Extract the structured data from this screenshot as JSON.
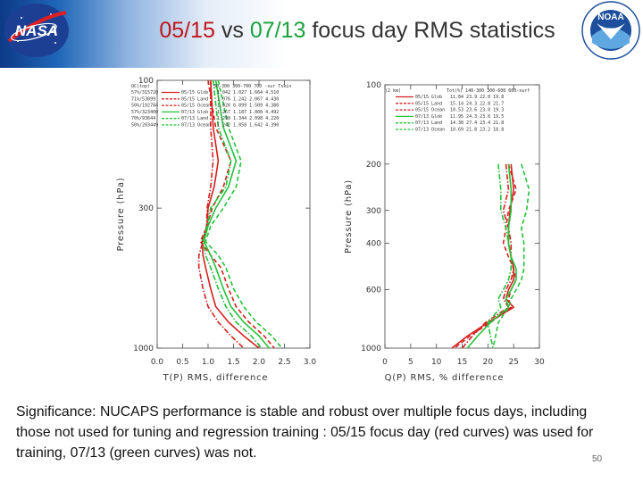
{
  "slide": {
    "title_prefix": "05/15",
    "title_vs": " vs ",
    "title_mid": "07/13",
    "title_suffix": " focus day RMS statistics",
    "nasa_logo_text": "NASA",
    "noaa_logo_text": "NOAA",
    "caption": "Significance: NUCAPS performance is stable and robust over multiple focus days, including those not used for tuning and regression training : 05/15 focus day (red curves) was used for training, 07/13 (green curves) was not.",
    "page_number": "50",
    "colors": {
      "red": "#d62020",
      "green": "#23c23a",
      "title_red": "#c0161b",
      "title_green": "#1aa23d"
    }
  },
  "chart_data": [
    {
      "type": "line",
      "xlabel": "T(P) RMS, difference",
      "ylabel": "Pressure (hPa)",
      "xlim": [
        0,
        3.0
      ],
      "ylim": [
        100,
        1000
      ],
      "y_scale": "log",
      "y_reversed": true,
      "xticks": [
        "0.0",
        "0.5",
        "1.0",
        "1.5",
        "2.0",
        "2.5",
        "3.0"
      ],
      "yticks": [
        "100",
        "300",
        "1000"
      ],
      "legend_position": "top-left",
      "legend_header": {
        "left": "QC(top)",
        "right": "30-300 300-700 700 -sur Tskin"
      },
      "legend_rows": [
        {
          "qc": "57%/315720",
          "label": "05/15 Glob",
          "vals": "1.042 1.027 1.664 4.510",
          "color": "red",
          "dash": "solid"
        },
        {
          "qc": "71%/53899",
          "label": "05/15 Land",
          "vals": "1.076 1.242 2.067 4.430",
          "color": "red",
          "dash": "dash"
        },
        {
          "qc": "50%/192784",
          "label": "05/15 Ocean",
          "vals": "1.026 0.899 1.509 4.380",
          "color": "red",
          "dash": "dashdot"
        },
        {
          "qc": "57%/323400",
          "label": "07/13 Glob",
          "vals": "1.267 1.187 1.808 4.492",
          "color": "green",
          "dash": "solid"
        },
        {
          "qc": "70%/93644",
          "label": "07/13 Land",
          "vals": "1.298 1.344 2.098 4.220",
          "color": "green",
          "dash": "dash"
        },
        {
          "qc": "50%/203449",
          "label": "07/13 Ocean",
          "vals": "1.242 1.058 1.642 4.390",
          "color": "green",
          "dash": "dashdot"
        }
      ],
      "pressure": [
        100,
        150,
        200,
        250,
        300,
        350,
        400,
        450,
        500,
        600,
        700,
        800,
        900,
        1000
      ],
      "series": [
        {
          "name": "05/15 Glob",
          "color": "red",
          "dash": "solid",
          "values": [
            1.05,
            1.1,
            1.2,
            1.12,
            1.0,
            0.98,
            0.88,
            0.9,
            0.95,
            1.05,
            1.15,
            1.4,
            1.7,
            2.0
          ]
        },
        {
          "name": "05/15 Land",
          "color": "red",
          "dash": "dash",
          "values": [
            1.0,
            1.15,
            1.45,
            1.3,
            1.08,
            0.98,
            0.85,
            1.05,
            1.25,
            1.4,
            1.55,
            1.8,
            2.1,
            2.3
          ]
        },
        {
          "name": "05/15 Ocean",
          "color": "red",
          "dash": "dashdot",
          "values": [
            1.05,
            1.05,
            1.1,
            1.05,
            0.98,
            0.97,
            0.9,
            0.82,
            0.82,
            0.9,
            1.0,
            1.2,
            1.45,
            1.7
          ]
        },
        {
          "name": "07/13 Glob",
          "color": "green",
          "dash": "solid",
          "values": [
            1.15,
            1.3,
            1.55,
            1.4,
            1.15,
            1.0,
            0.92,
            1.05,
            1.15,
            1.3,
            1.45,
            1.7,
            2.0,
            2.2
          ]
        },
        {
          "name": "07/13 Land",
          "color": "green",
          "dash": "dash",
          "values": [
            1.2,
            1.4,
            1.65,
            1.55,
            1.3,
            1.05,
            0.95,
            1.2,
            1.35,
            1.5,
            1.7,
            1.95,
            2.25,
            2.45
          ]
        },
        {
          "name": "07/13 Ocean",
          "color": "green",
          "dash": "dashdot",
          "values": [
            1.1,
            1.2,
            1.45,
            1.35,
            1.05,
            0.98,
            0.9,
            0.95,
            1.05,
            1.2,
            1.35,
            1.55,
            1.85,
            2.05
          ]
        }
      ]
    },
    {
      "type": "line",
      "xlabel": "Q(P) RMS, % difference",
      "ylabel": "Pressure (hPa)",
      "xlim": [
        0,
        30
      ],
      "ylim": [
        100,
        1000
      ],
      "y_scale": "log",
      "y_reversed": true,
      "xticks": [
        "0",
        "5",
        "10",
        "15",
        "20",
        "25",
        "30"
      ],
      "yticks": [
        "100",
        "200",
        "300",
        "400",
        "600",
        "1000"
      ],
      "legend_position": "top-left",
      "legend_header": {
        "left": "(2 km)",
        "right": "Tot(%) 140-300 300-600 600-surf"
      },
      "legend_rows": [
        {
          "label": "05/15 Glob",
          "vals": "11.84 23.9 22.8 19.8",
          "color": "red",
          "dash": "solid"
        },
        {
          "label": "05/15 Land",
          "vals": "15.14 24.3 22.8 21.7",
          "color": "red",
          "dash": "dash"
        },
        {
          "label": "05/15 Ocean",
          "vals": "10.53 23.6 23.0 19.3",
          "color": "red",
          "dash": "dashdot"
        },
        {
          "label": "07/13 Glob",
          "vals": "11.95 24.3 23.6 19.5",
          "color": "green",
          "dash": "solid"
        },
        {
          "label": "07/13 Land",
          "vals": "14.38 27.4 23.4 21.8",
          "color": "green",
          "dash": "dash"
        },
        {
          "label": "07/13 Ocean",
          "vals": "10.69 21.8 23.2 18.8",
          "color": "green",
          "dash": "dashdot"
        }
      ],
      "pressure": [
        200,
        250,
        300,
        350,
        400,
        450,
        500,
        550,
        600,
        650,
        700,
        800,
        900,
        1000
      ],
      "series": [
        {
          "name": "05/15 Glob",
          "color": "red",
          "dash": "solid",
          "values": [
            24.5,
            25.0,
            24.3,
            24.0,
            24.0,
            24.5,
            25.0,
            25.0,
            24.0,
            23.5,
            25.0,
            20.0,
            16.0,
            13.0
          ]
        },
        {
          "name": "05/15 Land",
          "color": "red",
          "dash": "dash",
          "values": [
            24.0,
            25.5,
            24.0,
            23.5,
            23.0,
            24.0,
            25.0,
            25.5,
            24.5,
            24.0,
            24.5,
            20.5,
            16.5,
            13.5
          ]
        },
        {
          "name": "05/15 Ocean",
          "color": "red",
          "dash": "dashdot",
          "values": [
            23.5,
            24.0,
            23.0,
            24.0,
            24.5,
            24.5,
            25.0,
            24.5,
            23.5,
            23.0,
            24.0,
            19.5,
            17.0,
            15.0
          ]
        },
        {
          "name": "07/13 Glob",
          "color": "green",
          "dash": "solid",
          "values": [
            24.0,
            24.5,
            24.5,
            24.0,
            24.0,
            24.5,
            25.5,
            25.5,
            24.5,
            23.5,
            24.0,
            20.5,
            18.0,
            16.0
          ]
        },
        {
          "name": "07/13 Land",
          "color": "green",
          "dash": "dash",
          "values": [
            26.5,
            28.0,
            27.5,
            26.5,
            27.0,
            27.0,
            27.0,
            26.5,
            25.5,
            24.5,
            24.0,
            22.0,
            21.5,
            21.0
          ]
        },
        {
          "name": "07/13 Ocean",
          "color": "green",
          "dash": "dashdot",
          "values": [
            22.0,
            22.5,
            22.5,
            23.5,
            24.0,
            24.5,
            24.5,
            24.0,
            23.0,
            22.0,
            22.5,
            20.0,
            20.5,
            21.0
          ]
        }
      ]
    }
  ]
}
